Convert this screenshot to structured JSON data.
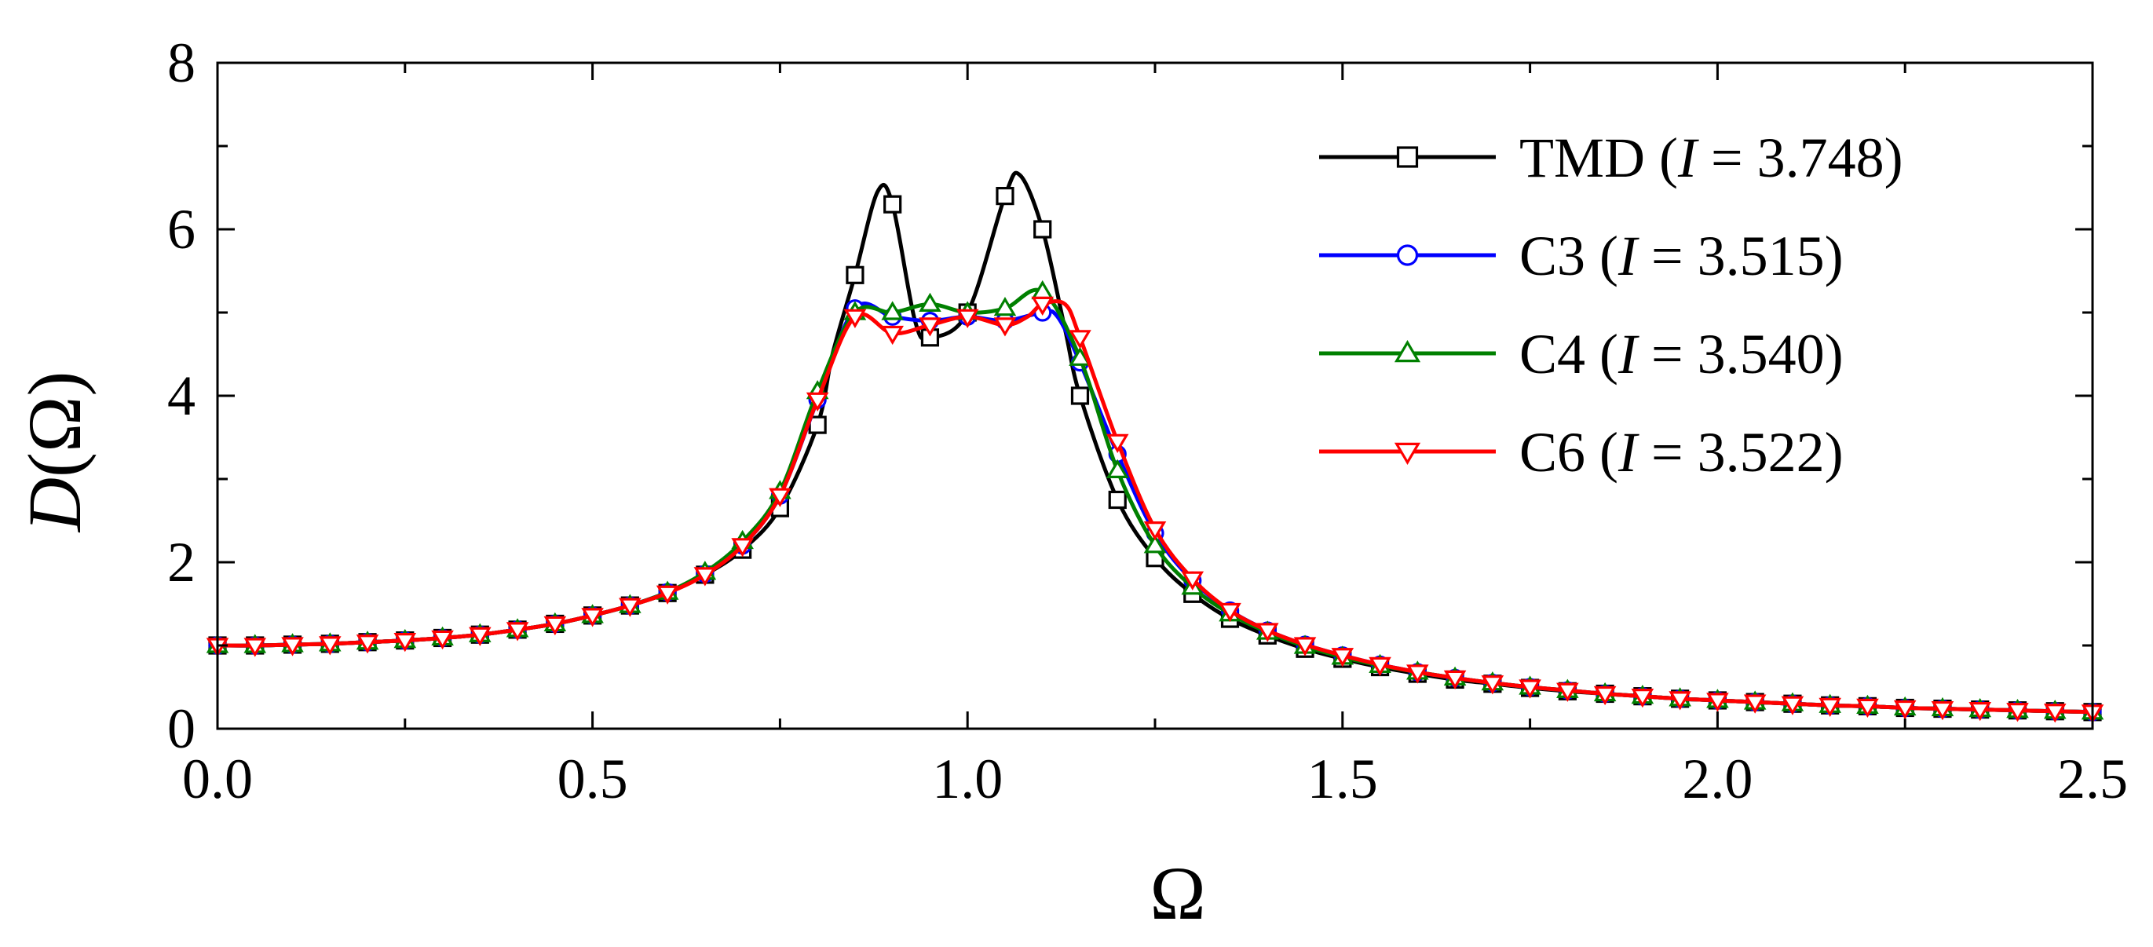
{
  "chart_data": {
    "type": "line",
    "title": "",
    "xlabel": "Ω",
    "ylabel_italic": "D",
    "ylabel_rest": "(Ω)",
    "xlim": [
      0.0,
      2.5
    ],
    "ylim": [
      0,
      8
    ],
    "x_ticks": [
      0.0,
      0.5,
      1.0,
      1.5,
      2.0,
      2.5
    ],
    "x_tick_labels": [
      "0.0",
      "0.5",
      "1.0",
      "1.5",
      "2.0",
      "2.5"
    ],
    "x_minor_step": 0.25,
    "y_ticks": [
      0,
      2,
      4,
      6,
      8
    ],
    "y_tick_labels": [
      "0",
      "2",
      "4",
      "6",
      "8"
    ],
    "y_minor_step": 1,
    "grid": false,
    "legend_position": "top-right",
    "series": [
      {
        "name": "TMD",
        "legend_prefix": "TMD (",
        "legend_var": "I",
        "legend_suffix": " = 3.748)",
        "color": "#000000",
        "marker": "square",
        "x": [
          0.0,
          0.05,
          0.1,
          0.15,
          0.2,
          0.25,
          0.3,
          0.35,
          0.4,
          0.45,
          0.5,
          0.55,
          0.6,
          0.65,
          0.7,
          0.75,
          0.8,
          0.82,
          0.85,
          0.88,
          0.9,
          0.93,
          0.95,
          1.0,
          1.05,
          1.07,
          1.1,
          1.13,
          1.15,
          1.2,
          1.25,
          1.3,
          1.35,
          1.4,
          1.45,
          1.5,
          1.55,
          1.6,
          1.65,
          1.7,
          1.75,
          1.8,
          1.85,
          1.9,
          1.95,
          2.0,
          2.05,
          2.1,
          2.15,
          2.2,
          2.25,
          2.3,
          2.35,
          2.4,
          2.45,
          2.5
        ],
        "y": [
          1.0,
          1.0,
          1.01,
          1.02,
          1.04,
          1.06,
          1.09,
          1.13,
          1.19,
          1.26,
          1.36,
          1.48,
          1.63,
          1.85,
          2.15,
          2.65,
          3.65,
          4.5,
          5.45,
          6.45,
          6.3,
          4.9,
          4.7,
          5.0,
          6.4,
          6.65,
          6.0,
          4.8,
          4.0,
          2.75,
          2.05,
          1.62,
          1.32,
          1.12,
          0.96,
          0.84,
          0.74,
          0.66,
          0.59,
          0.54,
          0.49,
          0.45,
          0.42,
          0.39,
          0.36,
          0.34,
          0.32,
          0.3,
          0.28,
          0.27,
          0.25,
          0.24,
          0.23,
          0.22,
          0.21,
          0.2
        ],
        "marker_x": [
          0.0,
          0.05,
          0.1,
          0.15,
          0.2,
          0.25,
          0.3,
          0.35,
          0.4,
          0.45,
          0.5,
          0.55,
          0.6,
          0.65,
          0.7,
          0.75,
          0.8,
          0.85,
          0.9,
          0.95,
          1.0,
          1.05,
          1.1,
          1.15,
          1.2,
          1.25,
          1.3,
          1.35,
          1.4,
          1.45,
          1.5,
          1.55,
          1.6,
          1.65,
          1.7,
          1.75,
          1.8,
          1.85,
          1.9,
          1.95,
          2.0,
          2.05,
          2.1,
          2.15,
          2.2,
          2.25,
          2.3,
          2.35,
          2.4,
          2.45,
          2.5
        ]
      },
      {
        "name": "C3",
        "legend_prefix": "C3 (",
        "legend_var": "I",
        "legend_suffix": " = 3.515)",
        "color": "#0000ff",
        "marker": "circle",
        "x": [
          0.0,
          0.05,
          0.1,
          0.15,
          0.2,
          0.25,
          0.3,
          0.35,
          0.4,
          0.45,
          0.5,
          0.55,
          0.6,
          0.65,
          0.7,
          0.75,
          0.8,
          0.85,
          0.9,
          0.95,
          1.0,
          1.05,
          1.1,
          1.12,
          1.15,
          1.2,
          1.25,
          1.3,
          1.35,
          1.4,
          1.45,
          1.5,
          1.55,
          1.6,
          1.65,
          1.7,
          1.75,
          1.8,
          1.85,
          1.9,
          1.95,
          2.0,
          2.05,
          2.1,
          2.15,
          2.2,
          2.25,
          2.3,
          2.35,
          2.4,
          2.45,
          2.5
        ],
        "y": [
          1.0,
          1.0,
          1.01,
          1.02,
          1.04,
          1.06,
          1.09,
          1.13,
          1.19,
          1.26,
          1.36,
          1.48,
          1.64,
          1.86,
          2.2,
          2.8,
          3.95,
          5.05,
          4.95,
          4.9,
          4.95,
          4.9,
          5.0,
          4.95,
          4.4,
          3.3,
          2.35,
          1.78,
          1.42,
          1.18,
          1.01,
          0.88,
          0.77,
          0.68,
          0.61,
          0.55,
          0.5,
          0.46,
          0.42,
          0.39,
          0.36,
          0.34,
          0.32,
          0.3,
          0.28,
          0.27,
          0.25,
          0.24,
          0.23,
          0.22,
          0.21,
          0.2
        ],
        "marker_x": [
          0.0,
          0.05,
          0.1,
          0.15,
          0.2,
          0.25,
          0.3,
          0.35,
          0.4,
          0.45,
          0.5,
          0.55,
          0.6,
          0.65,
          0.7,
          0.75,
          0.8,
          0.85,
          0.9,
          0.95,
          1.0,
          1.05,
          1.1,
          1.15,
          1.2,
          1.25,
          1.3,
          1.35,
          1.4,
          1.45,
          1.5,
          1.55,
          1.6,
          1.65,
          1.7,
          1.75,
          1.8,
          1.85,
          1.9,
          1.95,
          2.0,
          2.05,
          2.1,
          2.15,
          2.2,
          2.25,
          2.3,
          2.35,
          2.4,
          2.45,
          2.5
        ]
      },
      {
        "name": "C4",
        "legend_prefix": "C4 (",
        "legend_var": "I",
        "legend_suffix": " = 3.540)",
        "color": "#008000",
        "marker": "triangle-up",
        "x": [
          0.0,
          0.05,
          0.1,
          0.15,
          0.2,
          0.25,
          0.3,
          0.35,
          0.4,
          0.45,
          0.5,
          0.55,
          0.6,
          0.65,
          0.7,
          0.75,
          0.8,
          0.85,
          0.9,
          0.95,
          1.0,
          1.05,
          1.1,
          1.15,
          1.2,
          1.25,
          1.3,
          1.35,
          1.4,
          1.45,
          1.5,
          1.55,
          1.6,
          1.65,
          1.7,
          1.75,
          1.8,
          1.85,
          1.9,
          1.95,
          2.0,
          2.05,
          2.1,
          2.15,
          2.2,
          2.25,
          2.3,
          2.35,
          2.4,
          2.45,
          2.5
        ],
        "y": [
          1.0,
          1.0,
          1.01,
          1.02,
          1.04,
          1.06,
          1.09,
          1.13,
          1.19,
          1.26,
          1.36,
          1.48,
          1.64,
          1.88,
          2.25,
          2.85,
          4.05,
          5.0,
          5.0,
          5.1,
          5.0,
          5.05,
          5.25,
          4.45,
          3.1,
          2.2,
          1.7,
          1.38,
          1.16,
          0.99,
          0.86,
          0.76,
          0.68,
          0.61,
          0.55,
          0.5,
          0.46,
          0.42,
          0.39,
          0.36,
          0.34,
          0.32,
          0.3,
          0.28,
          0.27,
          0.25,
          0.24,
          0.23,
          0.22,
          0.21,
          0.2
        ],
        "marker_x": [
          0.0,
          0.05,
          0.1,
          0.15,
          0.2,
          0.25,
          0.3,
          0.35,
          0.4,
          0.45,
          0.5,
          0.55,
          0.6,
          0.65,
          0.7,
          0.75,
          0.8,
          0.85,
          0.9,
          0.95,
          1.0,
          1.05,
          1.1,
          1.15,
          1.2,
          1.25,
          1.3,
          1.35,
          1.4,
          1.45,
          1.5,
          1.55,
          1.6,
          1.65,
          1.7,
          1.75,
          1.8,
          1.85,
          1.9,
          1.95,
          2.0,
          2.05,
          2.1,
          2.15,
          2.2,
          2.25,
          2.3,
          2.35,
          2.4,
          2.45,
          2.5
        ]
      },
      {
        "name": "C6",
        "legend_prefix": "C6 (",
        "legend_var": "I",
        "legend_suffix": " = 3.522)",
        "color": "#ff0000",
        "marker": "triangle-down",
        "x": [
          0.0,
          0.05,
          0.1,
          0.15,
          0.2,
          0.25,
          0.3,
          0.35,
          0.4,
          0.45,
          0.5,
          0.55,
          0.6,
          0.65,
          0.7,
          0.75,
          0.8,
          0.85,
          0.9,
          0.95,
          1.0,
          1.05,
          1.08,
          1.1,
          1.13,
          1.15,
          1.2,
          1.25,
          1.3,
          1.35,
          1.4,
          1.45,
          1.5,
          1.55,
          1.6,
          1.65,
          1.7,
          1.75,
          1.8,
          1.85,
          1.9,
          1.95,
          2.0,
          2.05,
          2.1,
          2.15,
          2.2,
          2.25,
          2.3,
          2.35,
          2.4,
          2.45,
          2.5
        ],
        "y": [
          1.0,
          1.0,
          1.01,
          1.02,
          1.04,
          1.06,
          1.09,
          1.13,
          1.19,
          1.26,
          1.36,
          1.48,
          1.63,
          1.85,
          2.2,
          2.8,
          3.95,
          4.95,
          4.75,
          4.85,
          4.95,
          4.85,
          4.95,
          5.1,
          5.1,
          4.7,
          3.45,
          2.4,
          1.8,
          1.42,
          1.18,
          1.01,
          0.88,
          0.77,
          0.68,
          0.61,
          0.55,
          0.5,
          0.46,
          0.42,
          0.39,
          0.36,
          0.34,
          0.32,
          0.3,
          0.28,
          0.27,
          0.25,
          0.24,
          0.23,
          0.22,
          0.21,
          0.2
        ],
        "marker_x": [
          0.0,
          0.05,
          0.1,
          0.15,
          0.2,
          0.25,
          0.3,
          0.35,
          0.4,
          0.45,
          0.5,
          0.55,
          0.6,
          0.65,
          0.7,
          0.75,
          0.8,
          0.85,
          0.9,
          0.95,
          1.0,
          1.05,
          1.1,
          1.15,
          1.2,
          1.25,
          1.3,
          1.35,
          1.4,
          1.45,
          1.5,
          1.55,
          1.6,
          1.65,
          1.7,
          1.75,
          1.8,
          1.85,
          1.9,
          1.95,
          2.0,
          2.05,
          2.1,
          2.15,
          2.2,
          2.25,
          2.3,
          2.35,
          2.4,
          2.45,
          2.5
        ]
      }
    ]
  }
}
